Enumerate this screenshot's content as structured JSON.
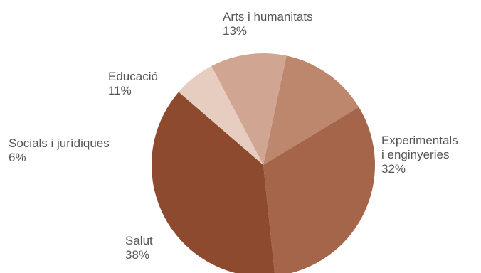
{
  "chart_data": {
    "type": "pie",
    "title": "",
    "slices": [
      {
        "label_lines": [
          "Arts i humanitats"
        ],
        "value": 13,
        "value_label": "13%",
        "color": "#bd876d"
      },
      {
        "label_lines": [
          "Experimentals",
          "i enginyeries"
        ],
        "value": 32,
        "value_label": "32%",
        "color": "#a4654a"
      },
      {
        "label_lines": [
          "Salut"
        ],
        "value": 38,
        "value_label": "38%",
        "color": "#8d4a2e"
      },
      {
        "label_lines": [
          "Socials i jurídiques"
        ],
        "value": 6,
        "value_label": "6%",
        "color": "#e7cdbf"
      },
      {
        "label_lines": [
          "Educació"
        ],
        "value": 11,
        "value_label": "11%",
        "color": "#d0a592"
      }
    ],
    "start_angle_deg": 12,
    "direction": "clockwise",
    "legend": "none",
    "data_labels": "outside"
  }
}
